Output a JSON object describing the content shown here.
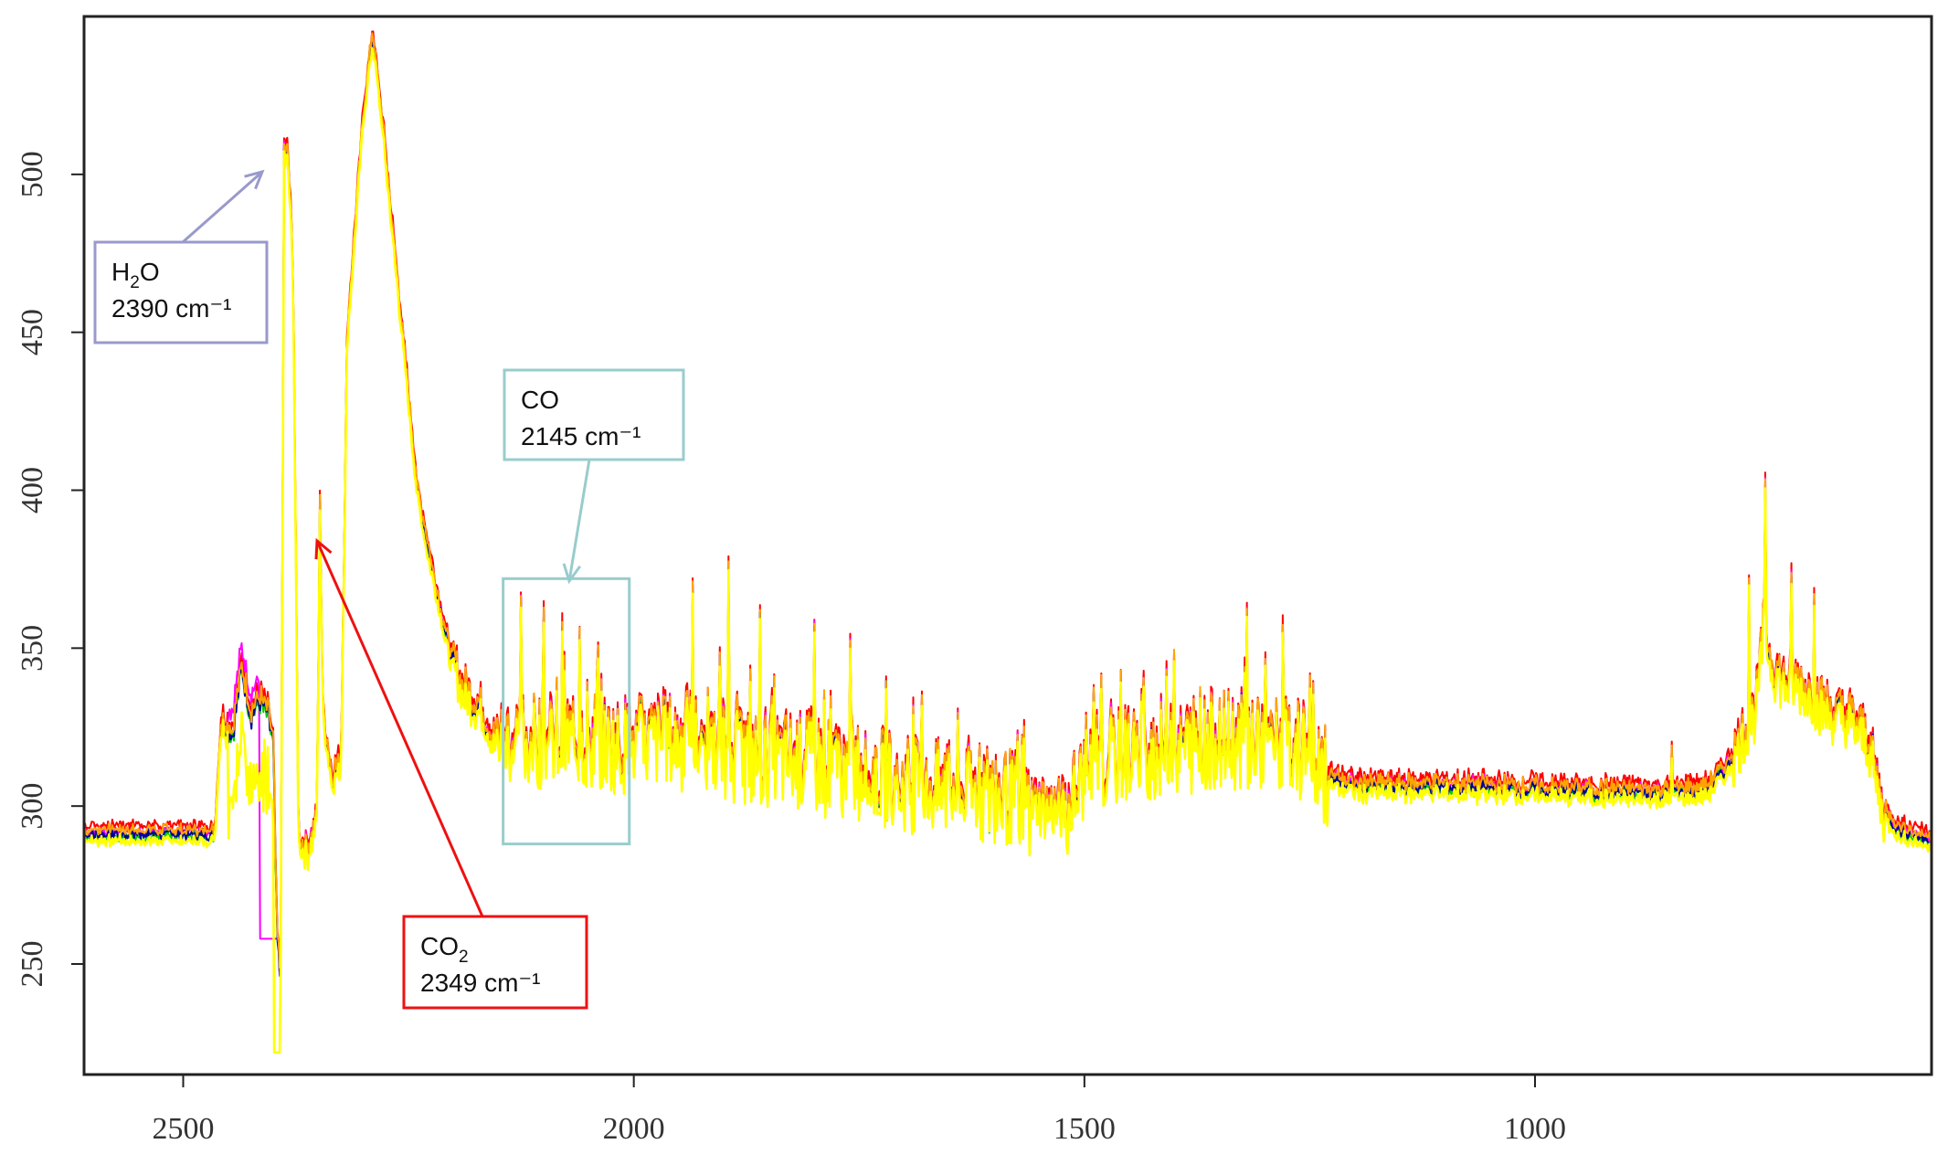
{
  "chart_data": {
    "type": "line",
    "title": "",
    "xlabel": "",
    "ylabel": "",
    "x_reversed": true,
    "xlim": [
      2610,
      560
    ],
    "ylim": [
      215,
      550
    ],
    "grid": false,
    "xticks": [
      {
        "value": 2500,
        "label": "2500"
      },
      {
        "value": 2000,
        "label": "2000"
      },
      {
        "value": 1500,
        "label": "1500"
      },
      {
        "value": 1000,
        "label": "1000"
      }
    ],
    "yticks": [
      {
        "value": 250,
        "label": "250"
      },
      {
        "value": 300,
        "label": "300"
      },
      {
        "value": 350,
        "label": "350"
      },
      {
        "value": 400,
        "label": "400"
      },
      {
        "value": 450,
        "label": "450"
      },
      {
        "value": 500,
        "label": "500"
      }
    ],
    "baseline": [
      [
        2610,
        292
      ],
      [
        2465,
        292
      ],
      [
        2458,
        328
      ],
      [
        2445,
        324
      ],
      [
        2435,
        345
      ],
      [
        2425,
        330
      ],
      [
        2415,
        334
      ],
      [
        2406,
        330
      ],
      [
        2400,
        320
      ],
      [
        2396,
        260
      ],
      [
        2392,
        245
      ],
      [
        2388,
        505
      ],
      [
        2384,
        508
      ],
      [
        2378,
        470
      ],
      [
        2372,
        290
      ],
      [
        2362,
        287
      ],
      [
        2352,
        296
      ],
      [
        2348,
        390
      ],
      [
        2345,
        330
      ],
      [
        2335,
        310
      ],
      [
        2325,
        315
      ],
      [
        2318,
        450
      ],
      [
        2300,
        520
      ],
      [
        2290,
        545
      ],
      [
        2280,
        520
      ],
      [
        2260,
        460
      ],
      [
        2240,
        400
      ],
      [
        2220,
        370
      ],
      [
        2205,
        350
      ],
      [
        2190,
        338
      ],
      [
        2170,
        332
      ],
      [
        2155,
        322
      ],
      [
        2140,
        322
      ],
      [
        2100,
        322
      ],
      [
        2060,
        322
      ],
      [
        2020,
        320
      ],
      [
        2000,
        321
      ],
      [
        1950,
        322
      ],
      [
        1900,
        318
      ],
      [
        1850,
        316
      ],
      [
        1800,
        315
      ],
      [
        1750,
        312
      ],
      [
        1700,
        308
      ],
      [
        1650,
        306
      ],
      [
        1600,
        305
      ],
      [
        1560,
        302
      ],
      [
        1520,
        300
      ],
      [
        1500,
        310
      ],
      [
        1450,
        318
      ],
      [
        1400,
        320
      ],
      [
        1350,
        322
      ],
      [
        1300,
        322
      ],
      [
        1260,
        318
      ],
      [
        1230,
        310
      ],
      [
        1200,
        307
      ],
      [
        1100,
        307
      ],
      [
        1000,
        306
      ],
      [
        900,
        305
      ],
      [
        850,
        305
      ],
      [
        810,
        306
      ],
      [
        790,
        312
      ],
      [
        770,
        322
      ],
      [
        755,
        332
      ],
      [
        745,
        360
      ],
      [
        740,
        348
      ],
      [
        725,
        340
      ],
      [
        710,
        340
      ],
      [
        690,
        335
      ],
      [
        670,
        330
      ],
      [
        650,
        328
      ],
      [
        630,
        322
      ],
      [
        615,
        300
      ],
      [
        600,
        294
      ],
      [
        585,
        292
      ],
      [
        560,
        290
      ]
    ],
    "spikes": [
      {
        "x": 2388,
        "y": 510
      },
      {
        "x": 2348,
        "y": 397
      },
      {
        "x": 2125,
        "y": 366
      },
      {
        "x": 2100,
        "y": 362
      },
      {
        "x": 2080,
        "y": 358
      },
      {
        "x": 2060,
        "y": 355
      },
      {
        "x": 2040,
        "y": 350
      },
      {
        "x": 1935,
        "y": 370
      },
      {
        "x": 1895,
        "y": 377
      },
      {
        "x": 1860,
        "y": 362
      },
      {
        "x": 1800,
        "y": 358
      },
      {
        "x": 1760,
        "y": 352
      },
      {
        "x": 1720,
        "y": 340
      },
      {
        "x": 1680,
        "y": 334
      },
      {
        "x": 1640,
        "y": 330
      },
      {
        "x": 1460,
        "y": 342
      },
      {
        "x": 1400,
        "y": 348
      },
      {
        "x": 1320,
        "y": 362
      },
      {
        "x": 1280,
        "y": 358
      },
      {
        "x": 1250,
        "y": 340
      },
      {
        "x": 848,
        "y": 318
      },
      {
        "x": 763,
        "y": 372
      },
      {
        "x": 745,
        "y": 403
      },
      {
        "x": 715,
        "y": 374
      },
      {
        "x": 690,
        "y": 366
      }
    ],
    "series": [
      {
        "color": "#ff0000"
      },
      {
        "color": "#ff00ff"
      },
      {
        "color": "#00cc00"
      },
      {
        "color": "#000099"
      },
      {
        "color": "#ffa500"
      },
      {
        "color": "#ffff00"
      }
    ],
    "annotations": [
      {
        "label_main": "H",
        "label_sub": "2",
        "label_tail": "O",
        "wavenumber": "2390 cm⁻¹",
        "color": "#9999cc",
        "x": 2390,
        "y": 502
      },
      {
        "label_main": "CO",
        "label_sub": "",
        "label_tail": "",
        "wavenumber": "2145 cm⁻¹",
        "color": "#99cccc",
        "x": 2145,
        "y": 372
      },
      {
        "label_main": "CO",
        "label_sub": "2",
        "label_tail": "",
        "wavenumber": "2349 cm⁻¹",
        "color": "#ee1111",
        "x": 2349,
        "y": 385
      }
    ],
    "highlight_region": {
      "x_from": 2145,
      "x_to": 2005,
      "y_from": 288,
      "y_to": 372,
      "color": "#99cccc"
    }
  }
}
